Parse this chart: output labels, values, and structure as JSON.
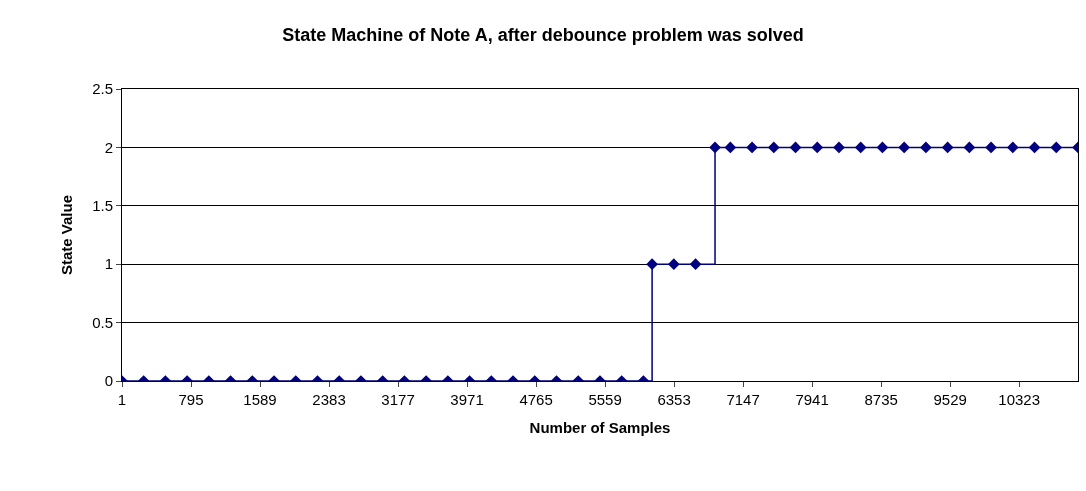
{
  "chart_data": {
    "type": "step",
    "title": "State Machine of Note A, after debounce problem was solved",
    "xlabel": "Number of Samples",
    "ylabel": "State Value",
    "x": [
      1,
      250,
      500,
      750,
      1000,
      1250,
      1500,
      1750,
      2000,
      2250,
      2500,
      2750,
      3000,
      3250,
      3500,
      3750,
      4000,
      4250,
      4500,
      4750,
      5000,
      5250,
      5500,
      5750,
      6000,
      6100,
      6350,
      6600,
      6824,
      7000,
      7250,
      7500,
      7750,
      8000,
      8250,
      8500,
      8750,
      9000,
      9250,
      9500,
      9750,
      10000,
      10250,
      10500,
      10750,
      11000
    ],
    "series": [
      {
        "color": "#000080",
        "values": [
          0,
          0,
          0,
          0,
          0,
          0,
          0,
          0,
          0,
          0,
          0,
          0,
          0,
          0,
          0,
          0,
          0,
          0,
          0,
          0,
          0,
          0,
          0,
          0,
          0,
          1,
          1,
          1,
          2,
          2,
          2,
          2,
          2,
          2,
          2,
          2,
          2,
          2,
          2,
          2,
          2,
          2,
          2,
          2,
          2,
          2
        ]
      }
    ],
    "xlim": [
      1,
      11000
    ],
    "xticks": [
      1,
      795,
      1589,
      2383,
      3177,
      3971,
      4765,
      5559,
      6353,
      7147,
      7941,
      8735,
      9529,
      10323
    ],
    "ylim": [
      0,
      2.5
    ],
    "yticks": [
      0,
      0.5,
      1,
      1.5,
      2,
      2.5
    ],
    "grid": "y",
    "marker": "diamond",
    "line_style": "solid",
    "legend": false
  }
}
